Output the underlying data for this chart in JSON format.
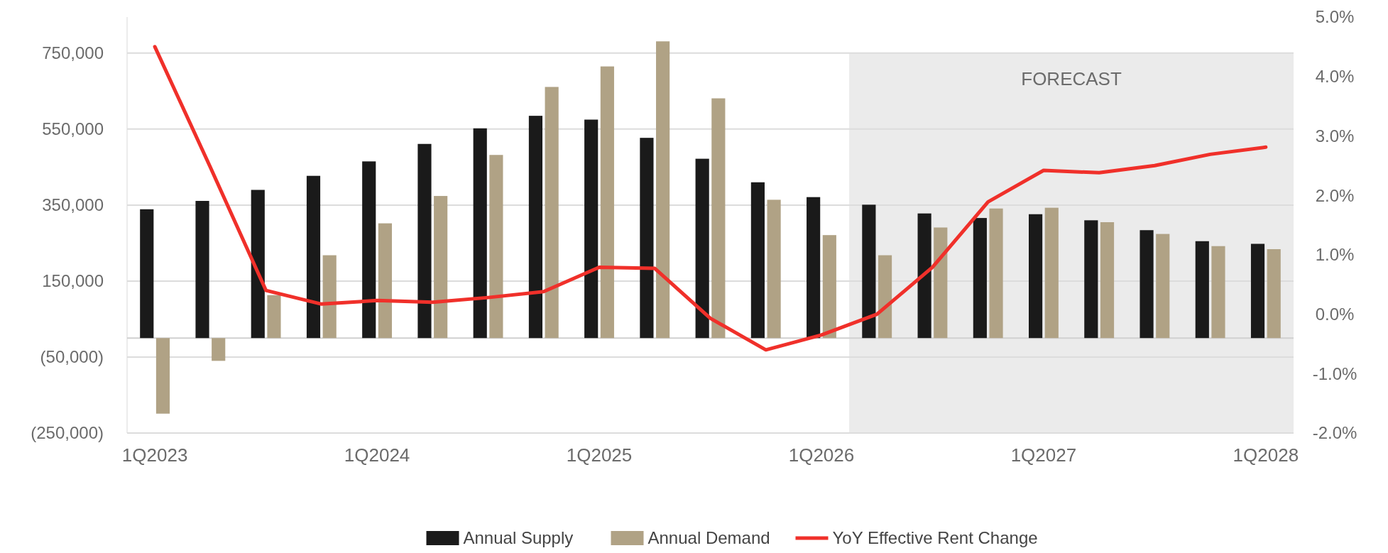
{
  "chart_data": {
    "type": "bar",
    "categories": [
      "1Q2023",
      null,
      null,
      null,
      "1Q2024",
      null,
      null,
      null,
      "1Q2025",
      null,
      null,
      null,
      "1Q2026",
      null,
      null,
      null,
      "1Q2027",
      null,
      null,
      null,
      "1Q2028"
    ],
    "series": [
      {
        "name": "Annual Supply",
        "color": "#1a1a1a",
        "values": [
          339000,
          361000,
          390000,
          427000,
          465000,
          511000,
          552000,
          585000,
          575000,
          527000,
          472000,
          410000,
          371000,
          351000,
          328000,
          316000,
          326000,
          310000,
          284000,
          255000,
          248000
        ]
      },
      {
        "name": "Annual Demand",
        "color": "#b0a285",
        "values": [
          -199000,
          -60000,
          113000,
          218000,
          302000,
          374000,
          482000,
          661000,
          715000,
          781000,
          631000,
          364000,
          271000,
          218000,
          291000,
          341000,
          343000,
          305000,
          274000,
          242000,
          234000
        ]
      },
      {
        "name": "YoY Effective Rent Change",
        "type": "line",
        "axis": "y2",
        "color": "#f0302a",
        "values": [
          4.5,
          2.47,
          0.4,
          0.17,
          0.23,
          0.2,
          0.28,
          0.38,
          0.79,
          0.77,
          -0.07,
          -0.6,
          -0.35,
          0.0,
          0.79,
          1.89,
          2.42,
          2.38,
          2.5,
          2.69,
          2.81
        ]
      }
    ],
    "ylim": [
      -250000,
      845000
    ],
    "yticks": [
      {
        "value": -250000,
        "label": "(250,000)"
      },
      {
        "value": -50000,
        "label": "(50,000)"
      },
      {
        "value": 150000,
        "label": "150,000"
      },
      {
        "value": 350000,
        "label": "350,000"
      },
      {
        "value": 550000,
        "label": "550,000"
      },
      {
        "value": 750000,
        "label": "750,000"
      }
    ],
    "y2lim": [
      -2,
      5
    ],
    "y2ticks": [
      {
        "value": -2,
        "label": "-2.0%"
      },
      {
        "value": -1,
        "label": "-1.0%"
      },
      {
        "value": 0,
        "label": "0.0%"
      },
      {
        "value": 1,
        "label": "1.0%"
      },
      {
        "value": 2,
        "label": "2.0%"
      },
      {
        "value": 3,
        "label": "3.0%"
      },
      {
        "value": 4,
        "label": "4.0%"
      },
      {
        "value": 5,
        "label": "5.0%"
      }
    ],
    "annotations": [
      "FORECAST"
    ],
    "grid": "y",
    "legend": "bottom"
  }
}
